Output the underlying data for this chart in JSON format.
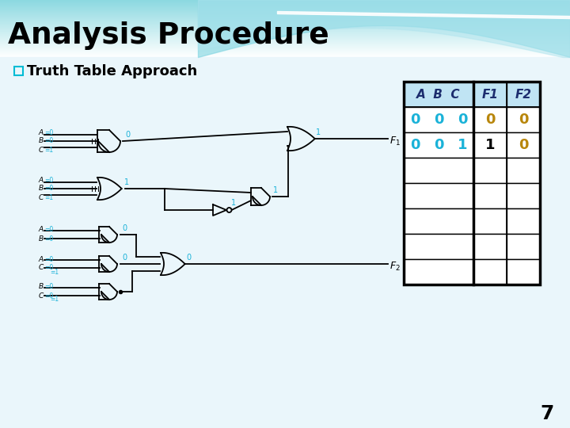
{
  "title": "Analysis Procedure",
  "bg_top_color": "#a0dce8",
  "bg_bottom_color": "#ffffff",
  "content_bg": "#f0f8fc",
  "subtitle_text": "Truth Table Approach",
  "subtitle_box_color": "#00bcd4",
  "table": {
    "headers": [
      "A B C",
      "F1",
      "F2"
    ],
    "header_italic": [
      "A",
      "B",
      "C",
      "F1",
      "F2"
    ],
    "rows": [
      [
        "0  0  0",
        "0",
        "0"
      ],
      [
        "0  0  1",
        "1",
        "0"
      ],
      [
        "",
        "",
        ""
      ],
      [
        "",
        "",
        ""
      ],
      [
        "",
        "",
        ""
      ],
      [
        "",
        "",
        ""
      ],
      [
        "",
        "",
        ""
      ]
    ],
    "abc_color": "#1ab2d8",
    "f1_color_row0": "#b8860b",
    "f1_color_row1": "#000000",
    "f2_color": "#b8860b",
    "header_color": "#1c2d6e",
    "header_bg": "#c5e8f5",
    "cell_bg": "#ffffff",
    "border_color": "#000000"
  },
  "page_number": "7",
  "gate_color": "#000000",
  "label_letter_color": "#000000",
  "label_value_color": "#1ab2d8",
  "output_label_color": "#1ab2d8",
  "F1_label_color": "#000000",
  "F2_label_color": "#000000"
}
